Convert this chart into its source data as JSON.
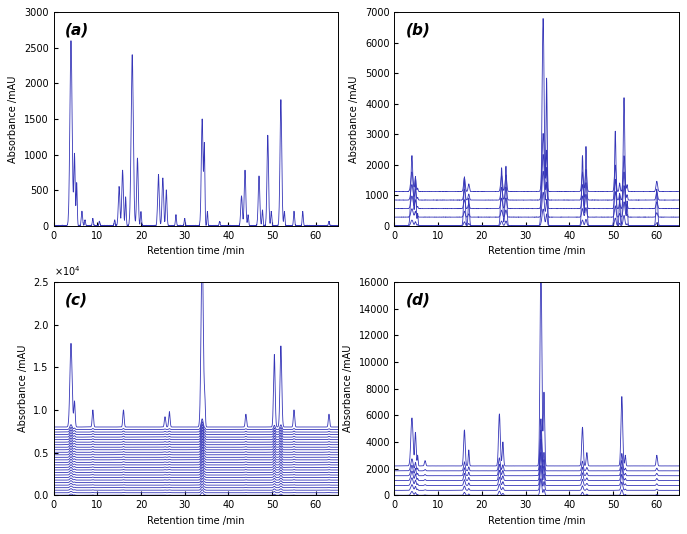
{
  "subplot_labels": [
    "(a)",
    "(b)",
    "(c)",
    "(d)"
  ],
  "xlabel": "Retention time /min",
  "ylabel": "Absorbance /mAU",
  "x_range": [
    0,
    65
  ],
  "x_ticks": [
    0,
    10,
    20,
    30,
    40,
    50,
    60
  ],
  "line_color": "#3636b8",
  "background": "#ffffff",
  "a_ylim": [
    0,
    3000
  ],
  "b_ylim": [
    0,
    7000
  ],
  "c_ylim": [
    0,
    25000
  ],
  "d_ylim": [
    0,
    16000
  ],
  "seed": 42
}
